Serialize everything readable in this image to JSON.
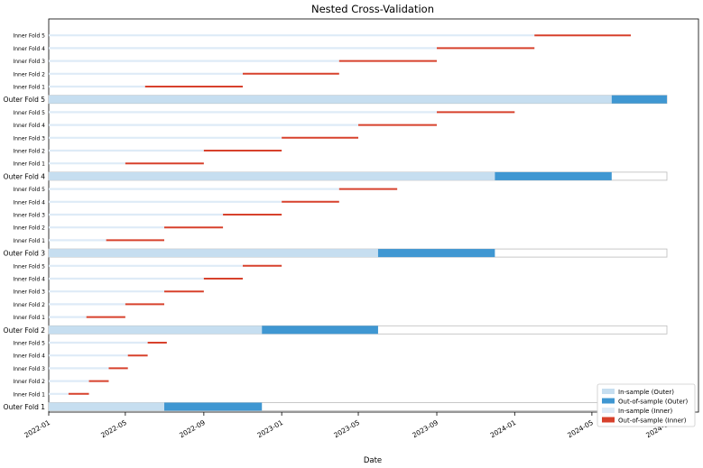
{
  "chart_data": {
    "type": "gantt",
    "title": "Nested Cross-Validation",
    "xlabel": "Date",
    "ylabel": "",
    "x_ticks": [
      "2022-01",
      "2022-05",
      "2022-09",
      "2023-01",
      "2023-05",
      "2023-09",
      "2024-01",
      "2024-05",
      "2024-09"
    ],
    "x_range": [
      "2022-01-01",
      "2024-10-15"
    ],
    "grid": false,
    "legend_position": "bottom-right",
    "legend": [
      {
        "label": "In-sample (Outer)",
        "color": "#c6def0"
      },
      {
        "label": "Out-of-sample (Outer)",
        "color": "#3f97d2"
      },
      {
        "label": "In-sample (Inner)",
        "color": "#deebf7"
      },
      {
        "label": "Out-of-sample (Inner)",
        "color": "#d7412c"
      }
    ],
    "outer_folds": [
      {
        "label": "Outer Fold 1",
        "in_sample": [
          "2022-01-01",
          "2022-07-01"
        ],
        "out_of_sample": [
          "2022-07-01",
          "2022-12-01"
        ],
        "inner_folds": [
          {
            "label": "Inner Fold 1",
            "in_sample": [
              "2022-01-01",
              "2022-02-01"
            ],
            "out_of_sample": [
              "2022-02-01",
              "2022-03-05"
            ]
          },
          {
            "label": "Inner Fold 2",
            "in_sample": [
              "2022-01-01",
              "2022-03-05"
            ],
            "out_of_sample": [
              "2022-03-05",
              "2022-04-05"
            ]
          },
          {
            "label": "Inner Fold 3",
            "in_sample": [
              "2022-01-01",
              "2022-04-05"
            ],
            "out_of_sample": [
              "2022-04-05",
              "2022-05-05"
            ]
          },
          {
            "label": "Inner Fold 4",
            "in_sample": [
              "2022-01-01",
              "2022-05-05"
            ],
            "out_of_sample": [
              "2022-05-05",
              "2022-06-05"
            ]
          },
          {
            "label": "Inner Fold 5",
            "in_sample": [
              "2022-01-01",
              "2022-06-05"
            ],
            "out_of_sample": [
              "2022-06-05",
              "2022-07-05"
            ]
          }
        ]
      },
      {
        "label": "Outer Fold 2",
        "in_sample": [
          "2022-01-01",
          "2022-12-01"
        ],
        "out_of_sample": [
          "2022-12-01",
          "2023-06-01"
        ],
        "inner_folds": [
          {
            "label": "Inner Fold 1",
            "in_sample": [
              "2022-01-01",
              "2022-03-01"
            ],
            "out_of_sample": [
              "2022-03-01",
              "2022-05-01"
            ]
          },
          {
            "label": "Inner Fold 2",
            "in_sample": [
              "2022-01-01",
              "2022-05-01"
            ],
            "out_of_sample": [
              "2022-05-01",
              "2022-07-01"
            ]
          },
          {
            "label": "Inner Fold 3",
            "in_sample": [
              "2022-01-01",
              "2022-07-01"
            ],
            "out_of_sample": [
              "2022-07-01",
              "2022-09-01"
            ]
          },
          {
            "label": "Inner Fold 4",
            "in_sample": [
              "2022-01-01",
              "2022-09-01"
            ],
            "out_of_sample": [
              "2022-09-01",
              "2022-11-01"
            ]
          },
          {
            "label": "Inner Fold 5",
            "in_sample": [
              "2022-01-01",
              "2022-11-01"
            ],
            "out_of_sample": [
              "2022-11-01",
              "2023-01-01"
            ]
          }
        ]
      },
      {
        "label": "Outer Fold 3",
        "in_sample": [
          "2022-01-01",
          "2023-06-01"
        ],
        "out_of_sample": [
          "2023-06-01",
          "2023-12-01"
        ],
        "inner_folds": [
          {
            "label": "Inner Fold 1",
            "in_sample": [
              "2022-01-01",
              "2022-04-01"
            ],
            "out_of_sample": [
              "2022-04-01",
              "2022-07-01"
            ]
          },
          {
            "label": "Inner Fold 2",
            "in_sample": [
              "2022-01-01",
              "2022-07-01"
            ],
            "out_of_sample": [
              "2022-07-01",
              "2022-10-01"
            ]
          },
          {
            "label": "Inner Fold 3",
            "in_sample": [
              "2022-01-01",
              "2022-10-01"
            ],
            "out_of_sample": [
              "2022-10-01",
              "2023-01-01"
            ]
          },
          {
            "label": "Inner Fold 4",
            "in_sample": [
              "2022-01-01",
              "2023-01-01"
            ],
            "out_of_sample": [
              "2023-01-01",
              "2023-04-01"
            ]
          },
          {
            "label": "Inner Fold 5",
            "in_sample": [
              "2022-01-01",
              "2023-04-01"
            ],
            "out_of_sample": [
              "2023-04-01",
              "2023-07-01"
            ]
          }
        ]
      },
      {
        "label": "Outer Fold 4",
        "in_sample": [
          "2022-01-01",
          "2023-12-01"
        ],
        "out_of_sample": [
          "2023-12-01",
          "2024-06-01"
        ],
        "inner_folds": [
          {
            "label": "Inner Fold 1",
            "in_sample": [
              "2022-01-01",
              "2022-05-01"
            ],
            "out_of_sample": [
              "2022-05-01",
              "2022-09-01"
            ]
          },
          {
            "label": "Inner Fold 2",
            "in_sample": [
              "2022-01-01",
              "2022-09-01"
            ],
            "out_of_sample": [
              "2022-09-01",
              "2023-01-01"
            ]
          },
          {
            "label": "Inner Fold 3",
            "in_sample": [
              "2022-01-01",
              "2023-01-01"
            ],
            "out_of_sample": [
              "2023-01-01",
              "2023-05-01"
            ]
          },
          {
            "label": "Inner Fold 4",
            "in_sample": [
              "2022-01-01",
              "2023-05-01"
            ],
            "out_of_sample": [
              "2023-05-01",
              "2023-09-01"
            ]
          },
          {
            "label": "Inner Fold 5",
            "in_sample": [
              "2022-01-01",
              "2023-09-01"
            ],
            "out_of_sample": [
              "2023-09-01",
              "2024-01-01"
            ]
          }
        ]
      },
      {
        "label": "Outer Fold 5",
        "in_sample": [
          "2022-01-01",
          "2024-06-01"
        ],
        "out_of_sample": [
          "2024-06-01",
          "2024-12-01"
        ],
        "inner_folds": [
          {
            "label": "Inner Fold 1",
            "in_sample": [
              "2022-01-01",
              "2022-06-01"
            ],
            "out_of_sample": [
              "2022-06-01",
              "2022-11-01"
            ]
          },
          {
            "label": "Inner Fold 2",
            "in_sample": [
              "2022-01-01",
              "2022-11-01"
            ],
            "out_of_sample": [
              "2022-11-01",
              "2023-04-01"
            ]
          },
          {
            "label": "Inner Fold 3",
            "in_sample": [
              "2022-01-01",
              "2023-04-01"
            ],
            "out_of_sample": [
              "2023-04-01",
              "2023-09-01"
            ]
          },
          {
            "label": "Inner Fold 4",
            "in_sample": [
              "2022-01-01",
              "2023-09-01"
            ],
            "out_of_sample": [
              "2023-09-01",
              "2024-02-01"
            ]
          },
          {
            "label": "Inner Fold 5",
            "in_sample": [
              "2022-01-01",
              "2024-02-01"
            ],
            "out_of_sample": [
              "2024-02-01",
              "2024-07-01"
            ]
          }
        ]
      }
    ]
  }
}
